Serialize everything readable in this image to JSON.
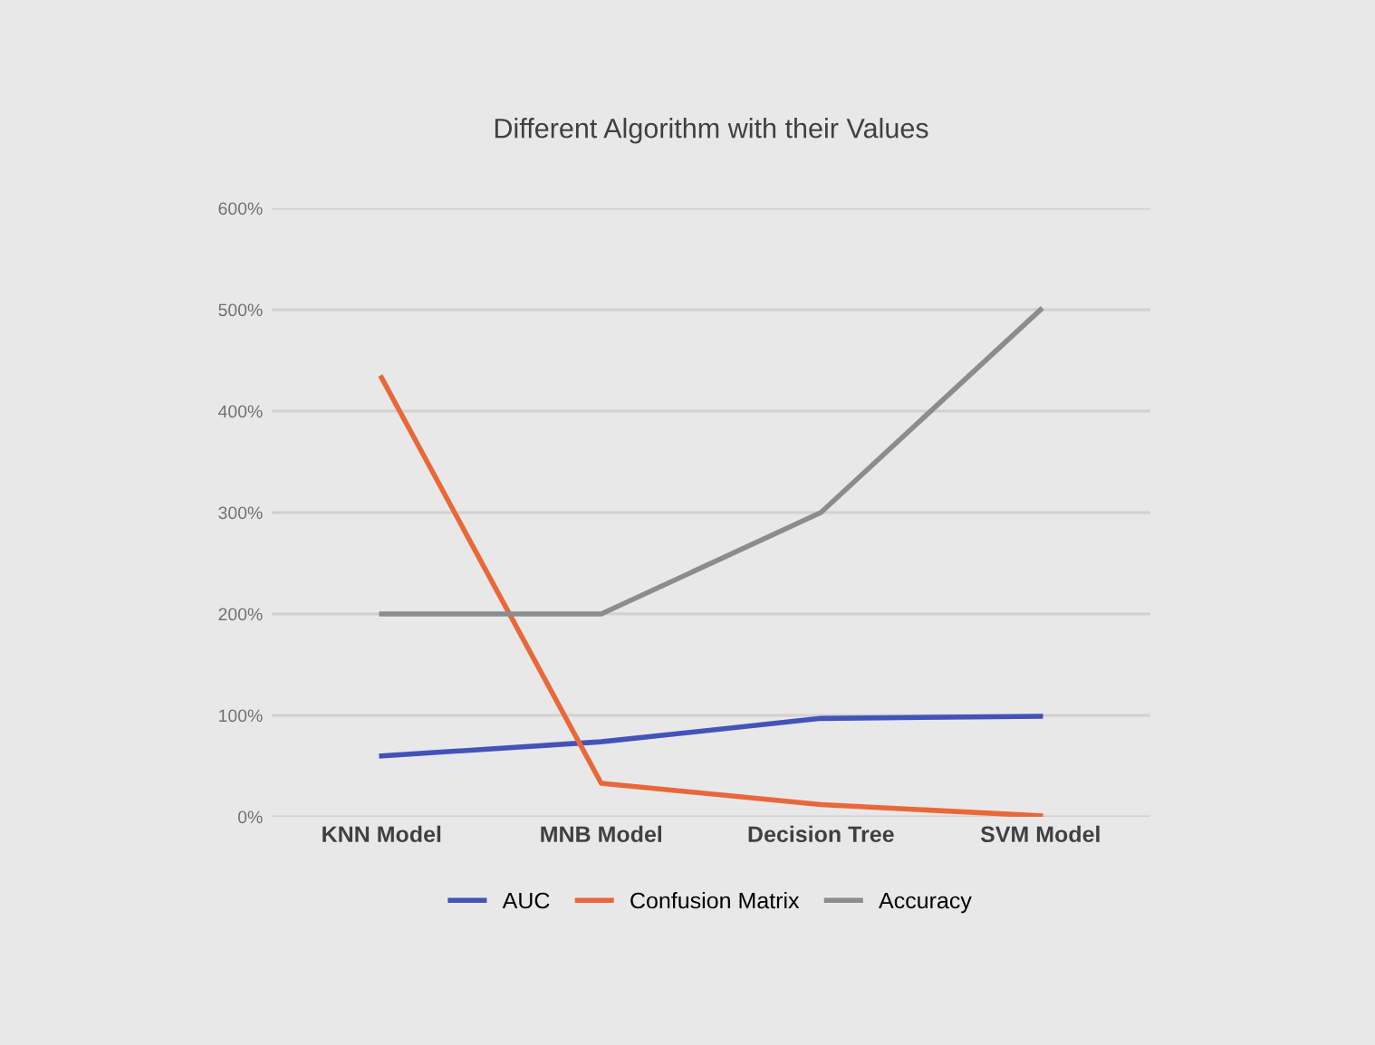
{
  "chart_data": {
    "type": "line",
    "title": "Different Algorithm with their Values",
    "categories": [
      "KNN Model",
      "MNB Model",
      "Decision Tree",
      "SVM Model"
    ],
    "series": [
      {
        "name": "AUC",
        "color": "#4353b8",
        "values": [
          60,
          74,
          97,
          99
        ]
      },
      {
        "name": "Confusion Matrix",
        "color": "#e8683a",
        "values": [
          433,
          33,
          12,
          1
        ]
      },
      {
        "name": "Accuracy",
        "color": "#8c8c8c",
        "values": [
          200,
          200,
          300,
          500
        ]
      }
    ],
    "ylim": [
      0,
      600
    ],
    "yticks": [
      {
        "value": 0,
        "label": "0%"
      },
      {
        "value": 100,
        "label": "100%"
      },
      {
        "value": 200,
        "label": "200%"
      },
      {
        "value": 300,
        "label": "300%"
      },
      {
        "value": 400,
        "label": "400%"
      },
      {
        "value": 500,
        "label": "500%"
      },
      {
        "value": 600,
        "label": "600%"
      }
    ],
    "grid": "y",
    "legend": "bottom",
    "marker": "none",
    "line_style": "solid"
  }
}
